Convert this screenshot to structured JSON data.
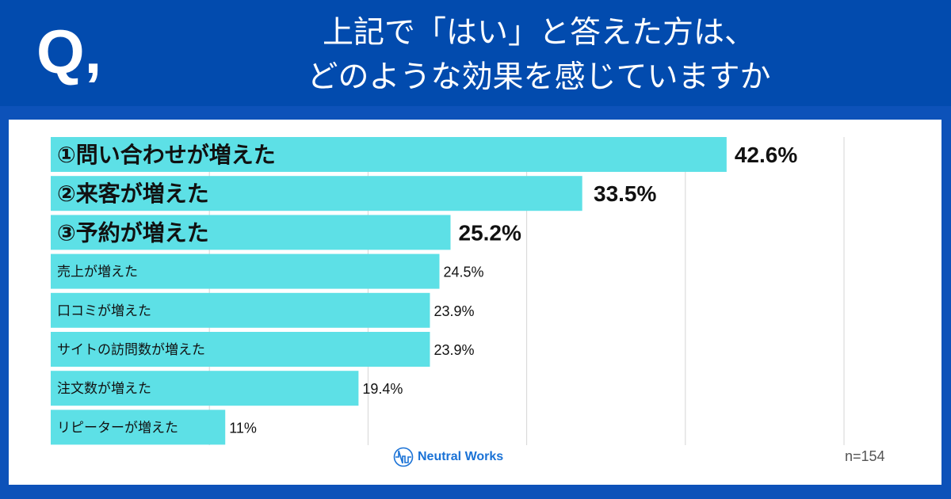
{
  "header": {
    "q_mark": "Q,",
    "title_line1": "上記で「はい」と答えた方は、",
    "title_line2": "どのような効果を感じていますか"
  },
  "footer": {
    "logo_text": "Neutral Works",
    "sample_size": "n=154"
  },
  "colors": {
    "header": "#024bae",
    "bar": "#5de0e6",
    "frame": "#0d52b9"
  },
  "chart_data": {
    "type": "bar",
    "orientation": "horizontal",
    "categories": [
      "①問い合わせが増えた",
      "②来客が増えた",
      "③予約が増えた",
      "売上が増えた",
      "口コミが増えた",
      "サイトの訪問数が増えた",
      "注文数が増えた",
      "リピーターが増えた"
    ],
    "values": [
      42.6,
      33.5,
      25.2,
      24.5,
      23.9,
      23.9,
      19.4,
      11
    ],
    "data_labels": [
      "42.6%",
      "33.5%",
      "25.2%",
      "24.5%",
      "23.9%",
      "23.9%",
      "19.4%",
      "11%"
    ],
    "highlighted_top": 3,
    "xlim": [
      0,
      50
    ],
    "grid": true,
    "unit": "%"
  }
}
